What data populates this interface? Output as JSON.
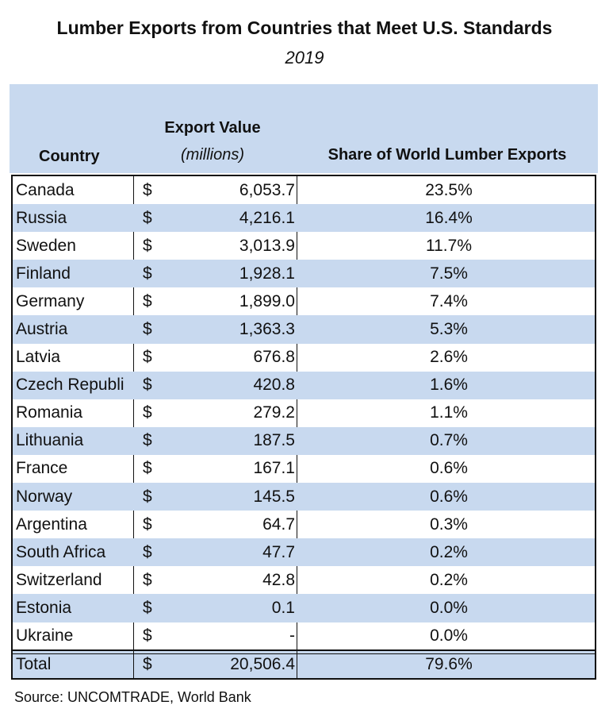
{
  "title": "Lumber Exports from Countries that Meet U.S. Standards",
  "subtitle": "2019",
  "headers": {
    "country": "Country",
    "value": "Export Value",
    "value_unit": "(millions)",
    "share": "Share of World Lumber Exports"
  },
  "rows": [
    {
      "country": "Canada",
      "currency": "$",
      "value": "6,053.7",
      "share": "23.5%"
    },
    {
      "country": "Russia",
      "currency": "$",
      "value": "4,216.1",
      "share": "16.4%"
    },
    {
      "country": "Sweden",
      "currency": "$",
      "value": "3,013.9",
      "share": "11.7%"
    },
    {
      "country": "Finland",
      "currency": "$",
      "value": "1,928.1",
      "share": "7.5%"
    },
    {
      "country": "Germany",
      "currency": "$",
      "value": "1,899.0",
      "share": "7.4%"
    },
    {
      "country": "Austria",
      "currency": "$",
      "value": "1,363.3",
      "share": "5.3%"
    },
    {
      "country": "Latvia",
      "currency": "$",
      "value": "676.8",
      "share": "2.6%"
    },
    {
      "country": "Czech Republi",
      "currency": "$",
      "value": "420.8",
      "share": "1.6%"
    },
    {
      "country": "Romania",
      "currency": "$",
      "value": "279.2",
      "share": "1.1%"
    },
    {
      "country": "Lithuania",
      "currency": "$",
      "value": "187.5",
      "share": "0.7%"
    },
    {
      "country": "France",
      "currency": "$",
      "value": "167.1",
      "share": "0.6%"
    },
    {
      "country": "Norway",
      "currency": "$",
      "value": "145.5",
      "share": "0.6%"
    },
    {
      "country": "Argentina",
      "currency": "$",
      "value": "64.7",
      "share": "0.3%"
    },
    {
      "country": "South Africa",
      "currency": "$",
      "value": "47.7",
      "share": "0.2%"
    },
    {
      "country": "Switzerland",
      "currency": "$",
      "value": "42.8",
      "share": "0.2%"
    },
    {
      "country": "Estonia",
      "currency": "$",
      "value": "0.1",
      "share": "0.0%"
    },
    {
      "country": "Ukraine",
      "currency": "$",
      "value": "-",
      "share": "0.0%"
    }
  ],
  "total": {
    "label": "Total",
    "currency": "$",
    "value": "20,506.4",
    "share": "79.6%"
  },
  "source": "Source: UNCOMTRADE, World Bank",
  "colors": {
    "header_fill": "#c8d9ef",
    "border": "#111111"
  }
}
